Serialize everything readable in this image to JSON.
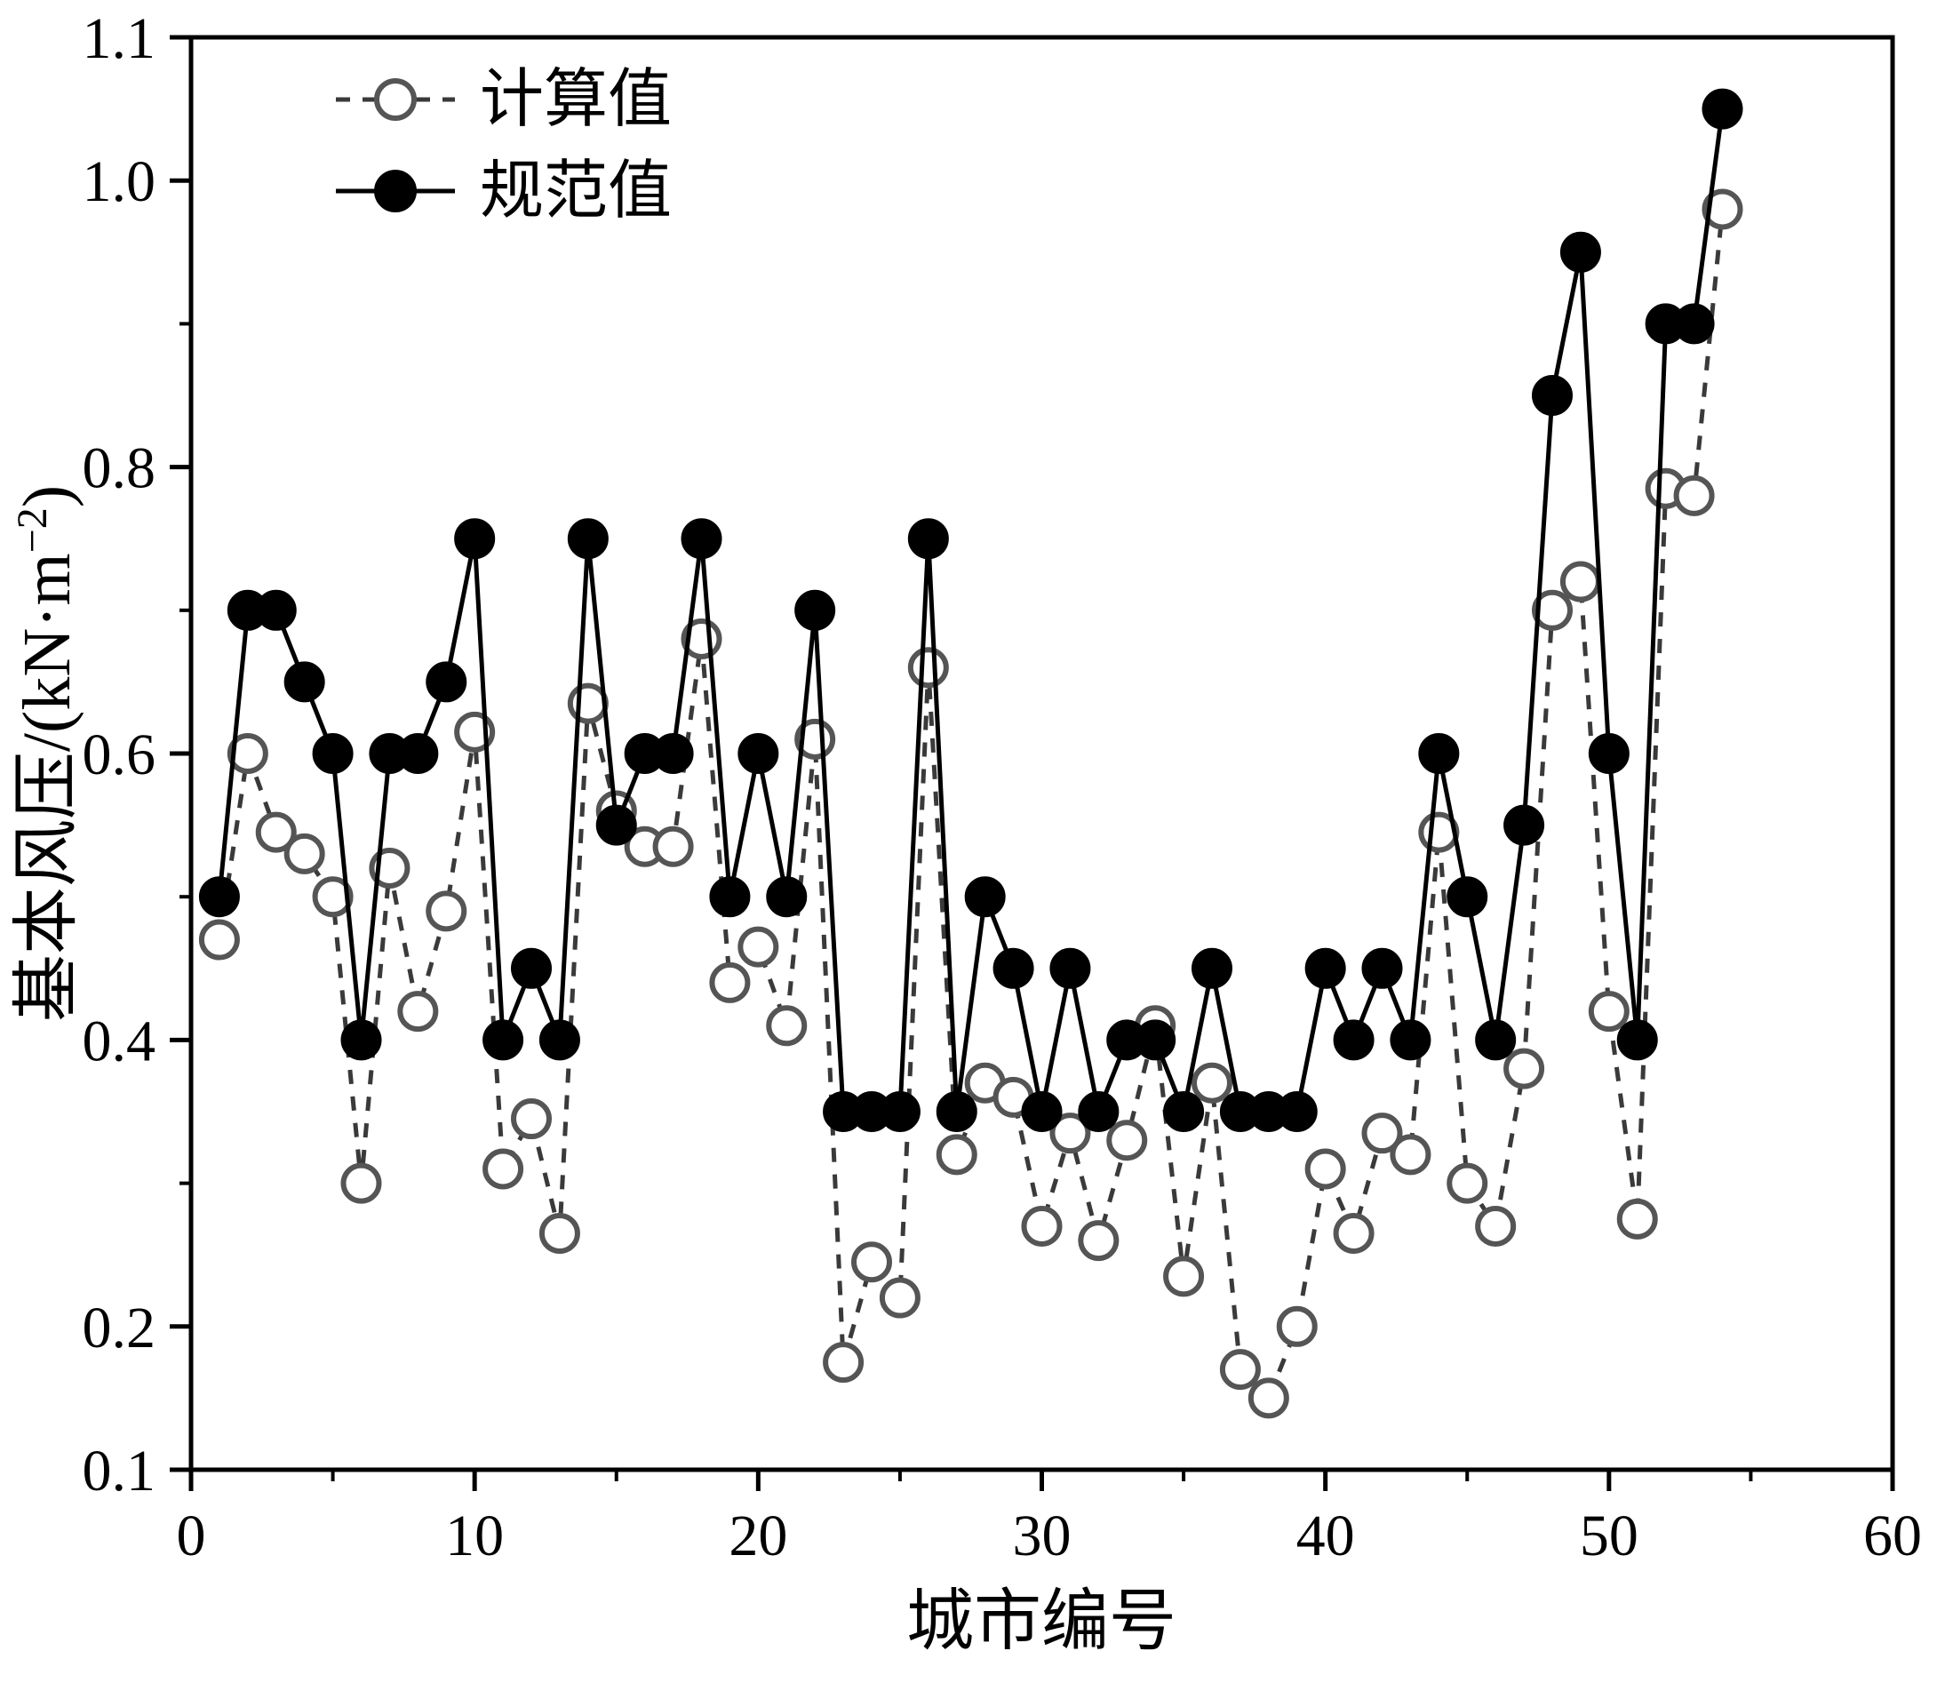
{
  "page": {
    "background": "#ffffff"
  },
  "colors": {
    "axis": "#000000",
    "standard_line": "#000000",
    "standard_marker_fill": "#000000",
    "calculated_line": "#3a3a3a",
    "calculated_marker_stroke": "#555555",
    "calculated_marker_fill": "#ffffff"
  },
  "chart_data": {
    "type": "line",
    "title": "",
    "xlabel": "城市编号",
    "ylabel": "基本风压/(kN·m⁻²)",
    "ylabel_parts": {
      "pre": "基本风压/(kN·m",
      "sup": "−2",
      "post": ")"
    },
    "xlim": [
      0,
      60
    ],
    "ylim": [
      0.1,
      1.1
    ],
    "grid": false,
    "legend_position": "upper-left",
    "x_major_ticks": [
      0,
      10,
      20,
      30,
      40,
      50,
      60
    ],
    "x_minor_ticks": [
      5,
      15,
      25,
      35,
      45,
      55
    ],
    "y_major_ticks": [
      0.1,
      0.2,
      0.4,
      0.6,
      0.8,
      1.0,
      1.1
    ],
    "y_tick_labels": [
      "0.1",
      "0.2",
      "0.4",
      "0.6",
      "0.8",
      "1.0",
      "1.1"
    ],
    "y_minor_ticks": [
      0.3,
      0.5,
      0.7,
      0.9
    ],
    "x": [
      1,
      2,
      3,
      4,
      5,
      6,
      7,
      8,
      9,
      10,
      11,
      12,
      13,
      14,
      15,
      16,
      17,
      18,
      19,
      20,
      21,
      22,
      23,
      24,
      25,
      26,
      27,
      28,
      29,
      30,
      31,
      32,
      33,
      34,
      35,
      36,
      37,
      38,
      39,
      40,
      41,
      42,
      43,
      44,
      45,
      46,
      47,
      48,
      49,
      50,
      51,
      52,
      53,
      54
    ],
    "series": [
      {
        "name": "计算值",
        "line": "dashed",
        "marker": "open-circle",
        "values": [
          0.47,
          0.6,
          0.545,
          0.53,
          0.5,
          0.3,
          0.52,
          0.42,
          0.49,
          0.615,
          0.31,
          0.345,
          0.265,
          0.635,
          0.56,
          0.535,
          0.535,
          0.68,
          0.44,
          0.465,
          0.41,
          0.61,
          0.175,
          0.245,
          0.22,
          0.66,
          0.32,
          0.37,
          0.36,
          0.27,
          0.335,
          0.26,
          0.33,
          0.41,
          0.235,
          0.37,
          0.17,
          0.15,
          0.2,
          0.31,
          0.265,
          0.335,
          0.32,
          0.545,
          0.3,
          0.27,
          0.38,
          0.7,
          0.72,
          0.42,
          0.275,
          0.785,
          0.78,
          0.98
        ]
      },
      {
        "name": "规范值",
        "line": "solid",
        "marker": "filled-circle",
        "values": [
          0.5,
          0.7,
          0.7,
          0.65,
          0.6,
          0.4,
          0.6,
          0.6,
          0.65,
          0.75,
          0.4,
          0.45,
          0.4,
          0.75,
          0.55,
          0.6,
          0.6,
          0.75,
          0.5,
          0.6,
          0.5,
          0.7,
          0.35,
          0.35,
          0.35,
          0.75,
          0.35,
          0.5,
          0.45,
          0.35,
          0.45,
          0.35,
          0.4,
          0.4,
          0.35,
          0.45,
          0.35,
          0.35,
          0.35,
          0.45,
          0.4,
          0.45,
          0.4,
          0.6,
          0.5,
          0.4,
          0.55,
          0.85,
          0.95,
          0.6,
          0.4,
          0.9,
          0.9,
          1.05
        ]
      }
    ]
  }
}
